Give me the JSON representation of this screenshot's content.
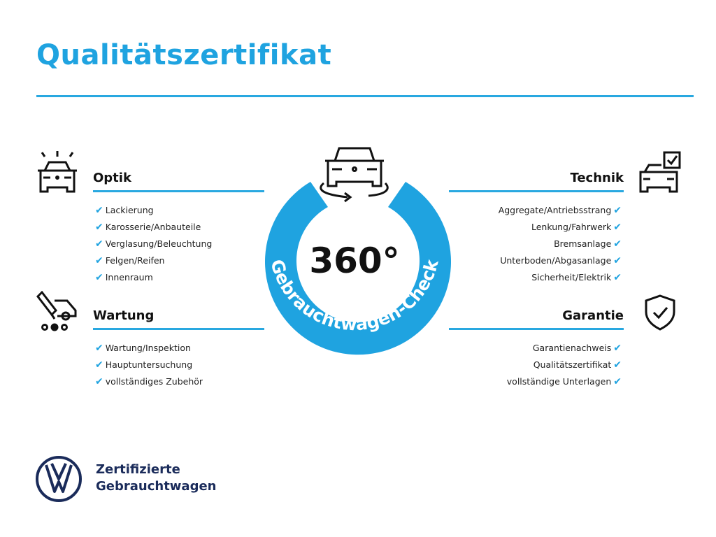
{
  "title": "Qualitätszertifikat",
  "accent_color": "#1fa3e0",
  "center": {
    "degrees": "360°",
    "ring_text": "Gebrauchtwagen-Check",
    "icon": "car-rotate-icon"
  },
  "sections": {
    "optik": {
      "title": "Optik",
      "icon": "car-lights-icon",
      "items": [
        "Lackierung",
        "Karosserie/Anbauteile",
        "Verglasung/Beleuchtung",
        "Felgen/Reifen",
        "Innenraum"
      ]
    },
    "wartung": {
      "title": "Wartung",
      "icon": "service-truck-icon",
      "items": [
        "Wartung/Inspektion",
        "Hauptuntersuchung",
        "vollständiges Zubehör"
      ]
    },
    "technik": {
      "title": "Technik",
      "icon": "car-checklist-icon",
      "items": [
        "Aggregate/Antriebsstrang",
        "Lenkung/Fahrwerk",
        "Bremsanlage",
        "Unterboden/Abgasanlage",
        "Sicherheit/Elektrik"
      ]
    },
    "garantie": {
      "title": "Garantie",
      "icon": "shield-check-icon",
      "items": [
        "Garantienachweis",
        "Qualitätszertifikat",
        "vollständige Unterlagen"
      ]
    }
  },
  "brand": {
    "line1": "Zertifizierte",
    "line2": "Gebrauchtwagen",
    "logo": "vw-logo",
    "logo_color": "#1a2b5a"
  }
}
